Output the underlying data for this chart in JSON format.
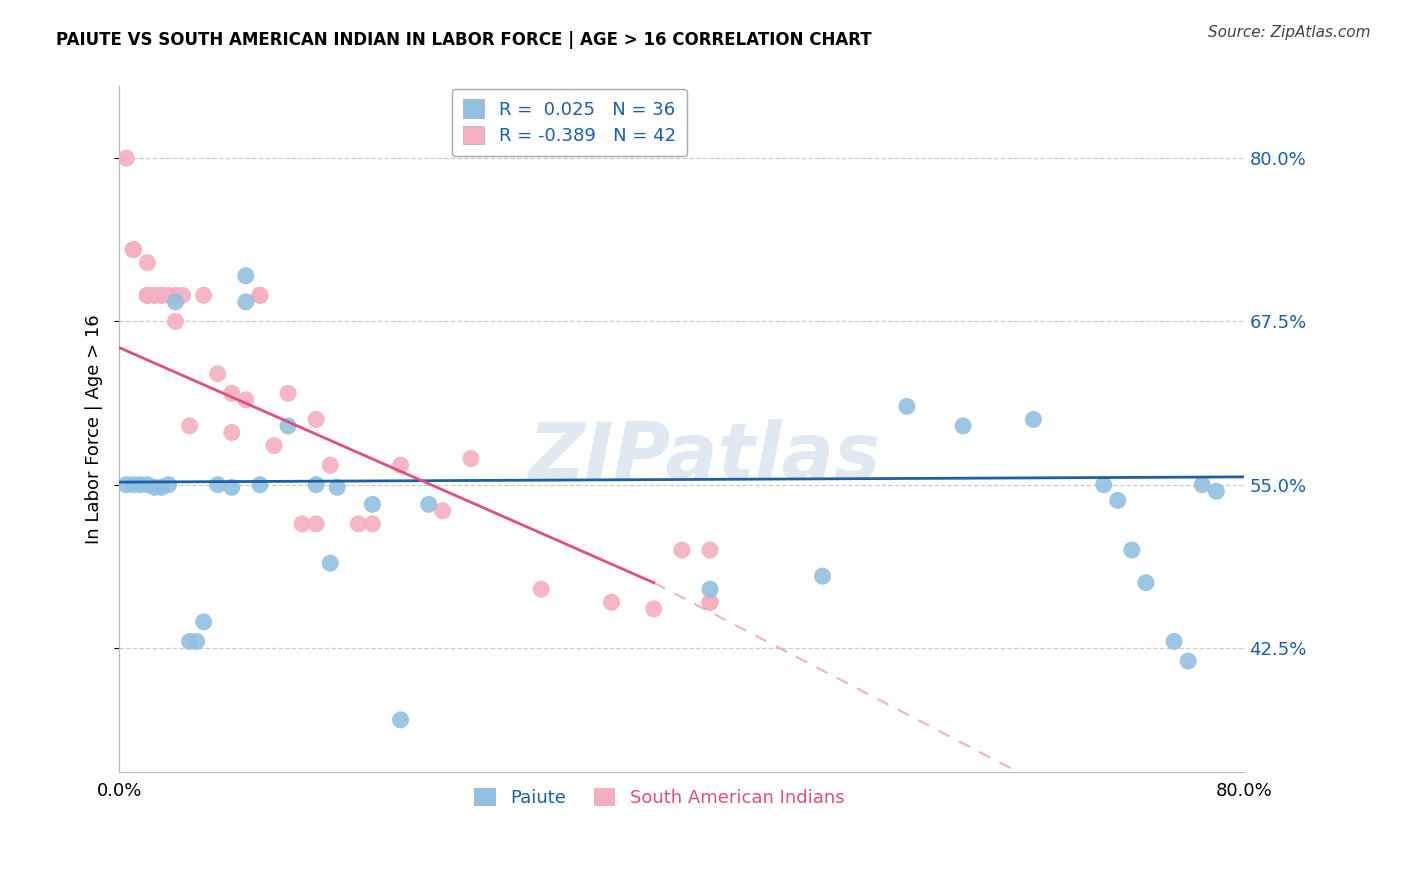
{
  "title": "PAIUTE VS SOUTH AMERICAN INDIAN IN LABOR FORCE | AGE > 16 CORRELATION CHART",
  "source": "Source: ZipAtlas.com",
  "ylabel": "In Labor Force | Age > 16",
  "ytick_labels": [
    "42.5%",
    "55.0%",
    "67.5%",
    "80.0%"
  ],
  "ytick_values": [
    0.425,
    0.55,
    0.675,
    0.8
  ],
  "xlim": [
    0.0,
    0.8
  ],
  "ylim": [
    0.33,
    0.855
  ],
  "legend_blue_r": "0.025",
  "legend_blue_n": "36",
  "legend_pink_r": "-0.389",
  "legend_pink_n": "42",
  "blue_color": "#92c0e0",
  "pink_color": "#f4afc0",
  "blue_line_color": "#1a5fa8",
  "pink_line_color": "#e0507a",
  "watermark": "ZIPatlas",
  "paiute_x": [
    0.005,
    0.01,
    0.015,
    0.02,
    0.025,
    0.03,
    0.035,
    0.04,
    0.05,
    0.055,
    0.06,
    0.07,
    0.08,
    0.09,
    0.09,
    0.1,
    0.12,
    0.14,
    0.15,
    0.155,
    0.18,
    0.2,
    0.22,
    0.42,
    0.5,
    0.56,
    0.6,
    0.65,
    0.7,
    0.71,
    0.72,
    0.73,
    0.75,
    0.76,
    0.77,
    0.78
  ],
  "paiute_y": [
    0.55,
    0.55,
    0.55,
    0.55,
    0.548,
    0.548,
    0.55,
    0.69,
    0.43,
    0.43,
    0.445,
    0.55,
    0.548,
    0.69,
    0.71,
    0.55,
    0.595,
    0.55,
    0.49,
    0.548,
    0.535,
    0.37,
    0.535,
    0.47,
    0.48,
    0.61,
    0.595,
    0.6,
    0.55,
    0.538,
    0.5,
    0.475,
    0.43,
    0.415,
    0.55,
    0.545
  ],
  "sa_x": [
    0.005,
    0.01,
    0.01,
    0.02,
    0.02,
    0.02,
    0.02,
    0.025,
    0.025,
    0.03,
    0.03,
    0.03,
    0.035,
    0.04,
    0.04,
    0.045,
    0.05,
    0.06,
    0.07,
    0.08,
    0.08,
    0.09,
    0.1,
    0.1,
    0.11,
    0.12,
    0.13,
    0.14,
    0.14,
    0.15,
    0.17,
    0.18,
    0.2,
    0.23,
    0.25,
    0.3,
    0.35,
    0.38,
    0.4,
    0.42,
    0.42,
    0.42
  ],
  "sa_y": [
    0.8,
    0.73,
    0.73,
    0.695,
    0.695,
    0.695,
    0.72,
    0.695,
    0.695,
    0.695,
    0.695,
    0.695,
    0.695,
    0.695,
    0.675,
    0.695,
    0.595,
    0.695,
    0.635,
    0.59,
    0.62,
    0.615,
    0.695,
    0.695,
    0.58,
    0.62,
    0.52,
    0.52,
    0.6,
    0.565,
    0.52,
    0.52,
    0.565,
    0.53,
    0.57,
    0.47,
    0.46,
    0.455,
    0.5,
    0.5,
    0.46,
    0.46
  ],
  "pink_line_start_y": 0.655,
  "pink_line_end_solid_x": 0.38,
  "pink_line_end_solid_y": 0.475,
  "pink_line_end_dashed_x": 0.8,
  "pink_line_end_dashed_y": 0.24,
  "blue_line_start_y": 0.552,
  "blue_line_end_y": 0.556
}
